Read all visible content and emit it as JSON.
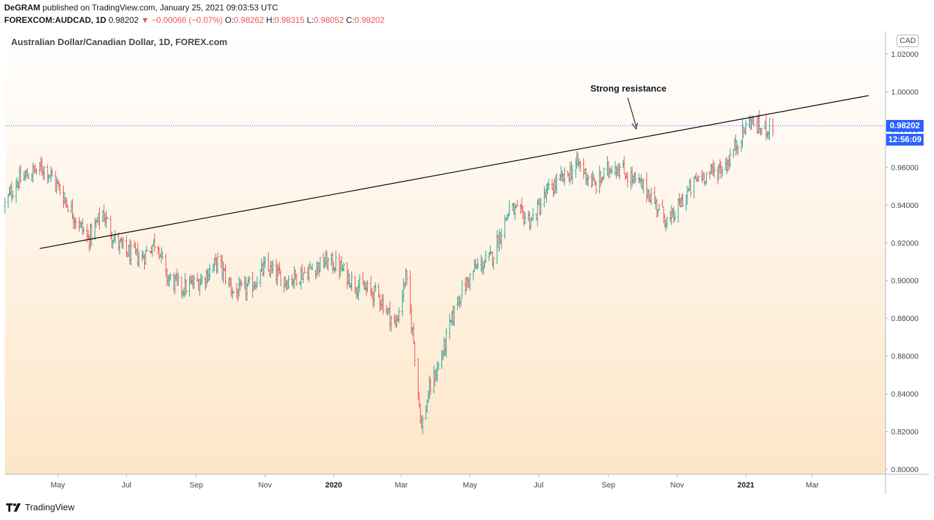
{
  "header": {
    "author": "DeGRAM",
    "published_text": " published on TradingView.com, January 25, 2021 09:03:53 UTC",
    "symbol": "FOREXCOM:AUDCAD, 1D",
    "last_price": "0.98202",
    "change": "−0.00066 (−0.07%)",
    "open_label": "O:",
    "open": "0.98262",
    "high_label": "H:",
    "high": "0.98315",
    "low_label": "L:",
    "low": "0.98052",
    "close_label": "C:",
    "close": "0.98202"
  },
  "pane_title": "Australian Dollar/Canadian Dollar, 1D, FOREX.com",
  "currency_label": "CAD",
  "price_tag": "0.98202",
  "countdown_tag": "12:56:09",
  "footer_brand": "TradingView",
  "annotation": "Strong resistance",
  "colors": {
    "up": "#26a69a",
    "down": "#ef5350",
    "accent": "#2962ff",
    "bg_top": "#ffffff",
    "bg_bottom": "#fde6c8"
  },
  "chart_data": {
    "type": "ohlc",
    "ylim": [
      0.8,
      1.02
    ],
    "y_ticks": [
      "1.02000",
      "1.00000",
      "0.98000",
      "0.96000",
      "0.94000",
      "0.92000",
      "0.90000",
      "0.88000",
      "0.86000",
      "0.84000",
      "0.82000",
      "0.80000"
    ],
    "x_ticks": [
      {
        "label": "May",
        "date": "2019-05-01"
      },
      {
        "label": "Jul",
        "date": "2019-07-01"
      },
      {
        "label": "Sep",
        "date": "2019-09-01"
      },
      {
        "label": "Nov",
        "date": "2019-11-01"
      },
      {
        "label": "2020",
        "date": "2020-01-01"
      },
      {
        "label": "Mar",
        "date": "2020-03-01"
      },
      {
        "label": "May",
        "date": "2020-05-01"
      },
      {
        "label": "Jul",
        "date": "2020-07-01"
      },
      {
        "label": "Sep",
        "date": "2020-09-01"
      },
      {
        "label": "Nov",
        "date": "2020-11-01"
      },
      {
        "label": "2021",
        "date": "2021-01-01"
      },
      {
        "label": "Mar",
        "date": "2021-03-01"
      }
    ],
    "xlim": [
      "2019-03-15",
      "2021-05-05"
    ],
    "series_path": [
      [
        "2019-03-15",
        0.94
      ],
      [
        "2019-03-25",
        0.952
      ],
      [
        "2019-04-10",
        0.958
      ],
      [
        "2019-04-20",
        0.96
      ],
      [
        "2019-05-01",
        0.95
      ],
      [
        "2019-05-15",
        0.935
      ],
      [
        "2019-05-28",
        0.922
      ],
      [
        "2019-06-10",
        0.936
      ],
      [
        "2019-06-20",
        0.922
      ],
      [
        "2019-07-01",
        0.915
      ],
      [
        "2019-07-15",
        0.912
      ],
      [
        "2019-07-28",
        0.922
      ],
      [
        "2019-08-05",
        0.902
      ],
      [
        "2019-08-20",
        0.896
      ],
      [
        "2019-09-05",
        0.9
      ],
      [
        "2019-09-20",
        0.91
      ],
      [
        "2019-10-05",
        0.893
      ],
      [
        "2019-10-20",
        0.897
      ],
      [
        "2019-11-01",
        0.907
      ],
      [
        "2019-11-20",
        0.9
      ],
      [
        "2019-12-05",
        0.904
      ],
      [
        "2019-12-25",
        0.91
      ],
      [
        "2020-01-05",
        0.908
      ],
      [
        "2020-01-20",
        0.898
      ],
      [
        "2020-02-10",
        0.892
      ],
      [
        "2020-02-25",
        0.876
      ],
      [
        "2020-03-05",
        0.902
      ],
      [
        "2020-03-12",
        0.868
      ],
      [
        "2020-03-19",
        0.822
      ],
      [
        "2020-03-26",
        0.842
      ],
      [
        "2020-04-05",
        0.858
      ],
      [
        "2020-04-20",
        0.89
      ],
      [
        "2020-05-05",
        0.906
      ],
      [
        "2020-05-20",
        0.912
      ],
      [
        "2020-06-05",
        0.938
      ],
      [
        "2020-06-25",
        0.932
      ],
      [
        "2020-07-10",
        0.948
      ],
      [
        "2020-07-25",
        0.955
      ],
      [
        "2020-08-05",
        0.962
      ],
      [
        "2020-08-20",
        0.95
      ],
      [
        "2020-09-05",
        0.962
      ],
      [
        "2020-09-20",
        0.955
      ],
      [
        "2020-10-05",
        0.948
      ],
      [
        "2020-10-25",
        0.93
      ],
      [
        "2020-11-05",
        0.942
      ],
      [
        "2020-11-20",
        0.955
      ],
      [
        "2020-12-05",
        0.958
      ],
      [
        "2020-12-15",
        0.962
      ],
      [
        "2020-12-25",
        0.974
      ],
      [
        "2021-01-05",
        0.985
      ],
      [
        "2021-01-15",
        0.98
      ],
      [
        "2021-01-25",
        0.982
      ]
    ],
    "resistance_line": [
      [
        "2019-04-15",
        0.917
      ],
      [
        "2021-04-20",
        0.998
      ]
    ],
    "last_price_line": 0.98202
  }
}
